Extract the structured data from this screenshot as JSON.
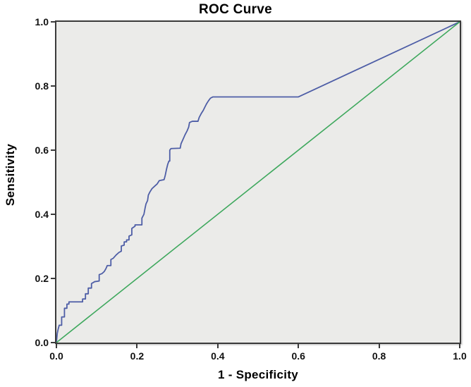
{
  "title": "ROC Curve",
  "axes": {
    "x_label": "1 - Specificity",
    "y_label": "Sensitivity",
    "x_ticks": [
      "0.0",
      "0.2",
      "0.4",
      "0.6",
      "0.8",
      "1.0"
    ],
    "y_ticks": [
      "0.0",
      "0.2",
      "0.4",
      "0.6",
      "0.8",
      "1.0"
    ]
  },
  "colors": {
    "roc_curve": "#4d5da6",
    "reference_line": "#3ea85d",
    "plot_background": "#ebebe9",
    "frame": "#3a3a3a",
    "text": "#000000"
  },
  "chart_data": {
    "type": "line",
    "title": "ROC Curve",
    "xlabel": "1 - Specificity",
    "ylabel": "Sensitivity",
    "xlim": [
      0,
      1
    ],
    "ylim": [
      0,
      1
    ],
    "x_tick_values": [
      0,
      0.2,
      0.4,
      0.6,
      0.8,
      1.0
    ],
    "y_tick_values": [
      0,
      0.2,
      0.4,
      0.6,
      0.8,
      1.0
    ],
    "grid": false,
    "legend": "none",
    "series": [
      {
        "name": "ROC curve (stepped)",
        "dom_name": "roc-curve-line",
        "color_key": "roc_curve",
        "stroke_width": 1.8,
        "points": [
          [
            0.0,
            0.0
          ],
          [
            0.002,
            0.028
          ],
          [
            0.004,
            0.04
          ],
          [
            0.007,
            0.054
          ],
          [
            0.013,
            0.054
          ],
          [
            0.013,
            0.08
          ],
          [
            0.02,
            0.08
          ],
          [
            0.02,
            0.107
          ],
          [
            0.026,
            0.107
          ],
          [
            0.026,
            0.12
          ],
          [
            0.031,
            0.12
          ],
          [
            0.031,
            0.127
          ],
          [
            0.065,
            0.127
          ],
          [
            0.065,
            0.136
          ],
          [
            0.072,
            0.136
          ],
          [
            0.072,
            0.152
          ],
          [
            0.079,
            0.152
          ],
          [
            0.079,
            0.17
          ],
          [
            0.087,
            0.17
          ],
          [
            0.087,
            0.184
          ],
          [
            0.095,
            0.19
          ],
          [
            0.106,
            0.192
          ],
          [
            0.106,
            0.212
          ],
          [
            0.113,
            0.215
          ],
          [
            0.119,
            0.222
          ],
          [
            0.123,
            0.231
          ],
          [
            0.126,
            0.24
          ],
          [
            0.135,
            0.24
          ],
          [
            0.135,
            0.259
          ],
          [
            0.141,
            0.263
          ],
          [
            0.148,
            0.273
          ],
          [
            0.155,
            0.281
          ],
          [
            0.161,
            0.285
          ],
          [
            0.161,
            0.301
          ],
          [
            0.168,
            0.304
          ],
          [
            0.168,
            0.314
          ],
          [
            0.174,
            0.314
          ],
          [
            0.174,
            0.32
          ],
          [
            0.18,
            0.32
          ],
          [
            0.18,
            0.332
          ],
          [
            0.187,
            0.336
          ],
          [
            0.187,
            0.356
          ],
          [
            0.195,
            0.363
          ],
          [
            0.195,
            0.367
          ],
          [
            0.212,
            0.367
          ],
          [
            0.212,
            0.388
          ],
          [
            0.217,
            0.4
          ],
          [
            0.22,
            0.42
          ],
          [
            0.222,
            0.432
          ],
          [
            0.226,
            0.443
          ],
          [
            0.228,
            0.46
          ],
          [
            0.232,
            0.47
          ],
          [
            0.237,
            0.48
          ],
          [
            0.244,
            0.488
          ],
          [
            0.25,
            0.495
          ],
          [
            0.255,
            0.505
          ],
          [
            0.267,
            0.508
          ],
          [
            0.27,
            0.522
          ],
          [
            0.273,
            0.54
          ],
          [
            0.276,
            0.556
          ],
          [
            0.279,
            0.566
          ],
          [
            0.281,
            0.566
          ],
          [
            0.281,
            0.6
          ],
          [
            0.284,
            0.605
          ],
          [
            0.307,
            0.606
          ],
          [
            0.309,
            0.62
          ],
          [
            0.314,
            0.634
          ],
          [
            0.319,
            0.648
          ],
          [
            0.324,
            0.66
          ],
          [
            0.328,
            0.672
          ],
          [
            0.33,
            0.686
          ],
          [
            0.337,
            0.69
          ],
          [
            0.351,
            0.69
          ],
          [
            0.354,
            0.702
          ],
          [
            0.359,
            0.714
          ],
          [
            0.364,
            0.724
          ],
          [
            0.368,
            0.734
          ],
          [
            0.372,
            0.744
          ],
          [
            0.377,
            0.754
          ],
          [
            0.382,
            0.762
          ],
          [
            0.388,
            0.766
          ],
          [
            0.6,
            0.766
          ],
          [
            1.0,
            1.0
          ]
        ]
      },
      {
        "name": "Reference diagonal",
        "dom_name": "reference-diagonal-line",
        "color_key": "reference_line",
        "stroke_width": 1.6,
        "points": [
          [
            0.0,
            0.0
          ],
          [
            1.0,
            1.0
          ]
        ]
      }
    ]
  }
}
